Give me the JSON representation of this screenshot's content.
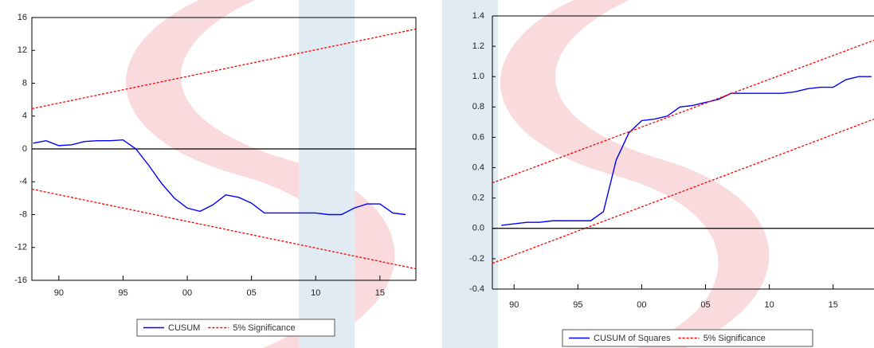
{
  "chart_data": [
    {
      "type": "line",
      "x": [
        1988,
        1989,
        1990,
        1991,
        1992,
        1993,
        1994,
        1995,
        1996,
        1997,
        1998,
        1999,
        2000,
        2001,
        2002,
        2003,
        2004,
        2005,
        2006,
        2007,
        2008,
        2009,
        2010,
        2011,
        2012,
        2013,
        2014,
        2015,
        2016,
        2017
      ],
      "xlim": [
        1987.9,
        2017.8
      ],
      "xticks": [
        {
          "value": 1990,
          "label": "90"
        },
        {
          "value": 1995,
          "label": "95"
        },
        {
          "value": 2000,
          "label": "00"
        },
        {
          "value": 2005,
          "label": "05"
        },
        {
          "value": 2010,
          "label": "10"
        },
        {
          "value": 2015,
          "label": "15"
        }
      ],
      "ylim": [
        -16,
        16
      ],
      "yticks": [
        16,
        12,
        8,
        4,
        0,
        -4,
        -8,
        -12,
        -16
      ],
      "series": [
        {
          "name": "CUSUM",
          "color": "#0000ff",
          "values": [
            0.7,
            1.0,
            0.4,
            0.5,
            0.9,
            1.0,
            1.0,
            1.1,
            0.0,
            -2.0,
            -4.2,
            -6.0,
            -7.2,
            -7.6,
            -6.8,
            -5.6,
            -5.9,
            -6.6,
            -7.8,
            -7.8,
            -7.8,
            -7.8,
            -7.8,
            -8.0,
            -8.0,
            -7.2,
            -6.7,
            -6.7,
            -7.8,
            -8.0
          ]
        },
        {
          "name": "5% Significance",
          "color": "#ff0000",
          "dashed": true,
          "x": [
            1987.9,
            2017.8
          ],
          "upper": [
            4.9,
            14.6
          ],
          "lower": [
            -4.9,
            -14.6
          ]
        }
      ]
    },
    {
      "type": "line",
      "x": [
        1989,
        1990,
        1991,
        1992,
        1993,
        1994,
        1995,
        1996,
        1997,
        1998,
        1999,
        2000,
        2001,
        2002,
        2003,
        2004,
        2005,
        2006,
        2007,
        2008,
        2009,
        2010,
        2011,
        2012,
        2013,
        2014,
        2015,
        2016,
        2017,
        2018
      ],
      "xlim": [
        1988.3,
        2018.2
      ],
      "xticks": [
        {
          "value": 1990,
          "label": "90"
        },
        {
          "value": 1995,
          "label": "95"
        },
        {
          "value": 2000,
          "label": "00"
        },
        {
          "value": 2005,
          "label": "05"
        },
        {
          "value": 2010,
          "label": "10"
        },
        {
          "value": 2015,
          "label": "15"
        }
      ],
      "ylim": [
        -0.4,
        1.4
      ],
      "yticks": [
        1.4,
        1.2,
        {
          "value": 1,
          "label": "1.0"
        },
        0.8,
        0.6,
        0.4,
        0.2,
        {
          "value": 0,
          "label": "0.0"
        },
        -0.2,
        -0.4
      ],
      "series": [
        {
          "name": "CUSUM of Squares",
          "color": "#0000ff",
          "values": [
            0.02,
            0.03,
            0.04,
            0.04,
            0.05,
            0.05,
            0.05,
            0.05,
            0.11,
            0.45,
            0.63,
            0.71,
            0.72,
            0.74,
            0.8,
            0.81,
            0.83,
            0.85,
            0.89,
            0.89,
            0.89,
            0.89,
            0.89,
            0.9,
            0.92,
            0.93,
            0.93,
            0.98,
            1.0,
            1.0
          ]
        },
        {
          "name": "5% Significance",
          "color": "#ff0000",
          "dashed": true,
          "x": [
            1988.3,
            2018.2
          ],
          "upper": [
            0.3,
            1.24
          ],
          "lower": [
            -0.23,
            0.72
          ]
        }
      ]
    }
  ]
}
